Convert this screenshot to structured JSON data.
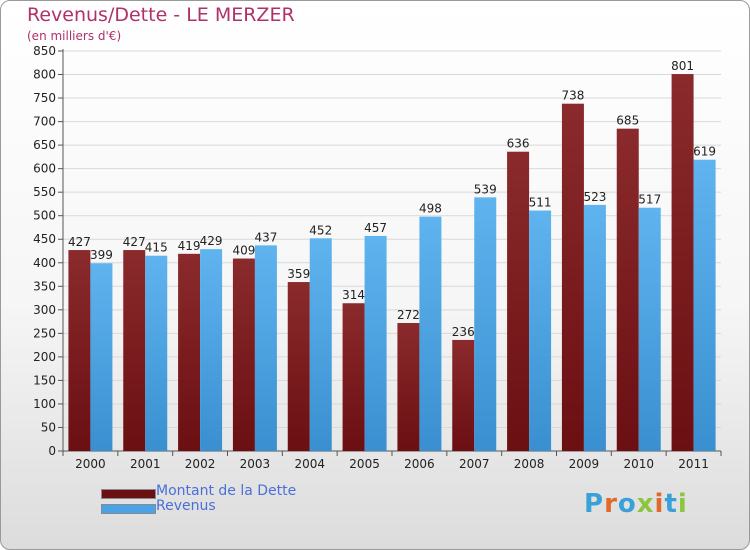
{
  "title": "Revenus/Dette - LE MERZER",
  "subtitle": "(en milliers d'€)",
  "brand": {
    "name": "Proxiti",
    "letter_colors": [
      "#3aa0d8",
      "#e06a2a",
      "#3aa0d8",
      "#8cc63f",
      "#e06a2a",
      "#3aa0d8",
      "#8cc63f"
    ]
  },
  "colors": {
    "debt": "#6b0f12",
    "revenue": "#4aa3e6",
    "text": "#b0306a",
    "axis_text": "#222222"
  },
  "chart_data": {
    "type": "bar",
    "categories": [
      "2000",
      "2001",
      "2002",
      "2003",
      "2004",
      "2005",
      "2006",
      "2007",
      "2008",
      "2009",
      "2010",
      "2011"
    ],
    "series": [
      {
        "name": "Montant de la Dette",
        "values": [
          427,
          427,
          419,
          409,
          359,
          314,
          272,
          236,
          636,
          738,
          685,
          801
        ]
      },
      {
        "name": "Revenus",
        "values": [
          399,
          415,
          429,
          437,
          452,
          457,
          498,
          539,
          511,
          523,
          517,
          619
        ]
      }
    ],
    "ylim": [
      0,
      850
    ],
    "ytick_step": 50,
    "grid": true,
    "legend_position": "bottom-left"
  }
}
